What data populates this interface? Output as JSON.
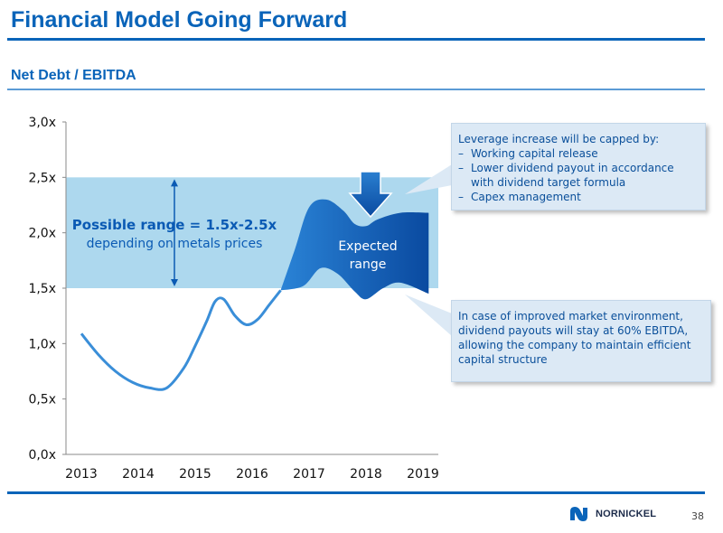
{
  "slide": {
    "title": "Financial Model Going Forward",
    "subtitle": "Net Debt / EBITDA",
    "page_number": "38",
    "logo_text": "NORNICKEL"
  },
  "chart_data": {
    "type": "line",
    "x": [
      "2013",
      "2014",
      "2015",
      "2016",
      "2017",
      "2018",
      "2019"
    ],
    "y_ticks": [
      "0,0x",
      "0,5x",
      "1,0x",
      "1,5x",
      "2,0x",
      "2,5x",
      "3,0x"
    ],
    "ylim": [
      0,
      3
    ],
    "grid": false,
    "series": [
      {
        "points": [
          [
            2013.0,
            1.09
          ],
          [
            2013.3,
            0.9
          ],
          [
            2013.6,
            0.75
          ],
          [
            2013.9,
            0.65
          ],
          [
            2014.2,
            0.6
          ],
          [
            2014.5,
            0.6
          ],
          [
            2014.8,
            0.78
          ],
          [
            2015.0,
            0.98
          ],
          [
            2015.2,
            1.2
          ],
          [
            2015.35,
            1.38
          ],
          [
            2015.5,
            1.4
          ],
          [
            2015.7,
            1.25
          ],
          [
            2015.9,
            1.17
          ],
          [
            2016.1,
            1.22
          ],
          [
            2016.3,
            1.35
          ],
          [
            2016.5,
            1.48
          ]
        ]
      }
    ],
    "possible_range": {
      "low": 1.5,
      "high": 2.5,
      "label": "Possible range = 1.5x-2.5x",
      "sublabel": "depending on metals prices"
    },
    "expected_range": {
      "label_line1": "Expected",
      "label_line2": "range",
      "upper": [
        [
          2016.5,
          1.48
        ],
        [
          2016.75,
          1.85
        ],
        [
          2017.0,
          2.23
        ],
        [
          2017.3,
          2.3
        ],
        [
          2017.6,
          2.2
        ],
        [
          2017.8,
          2.08
        ],
        [
          2018.0,
          2.06
        ],
        [
          2018.2,
          2.12
        ],
        [
          2018.6,
          2.18
        ],
        [
          2019.1,
          2.18
        ]
      ],
      "lower": [
        [
          2019.1,
          1.45
        ],
        [
          2018.6,
          1.55
        ],
        [
          2018.3,
          1.5
        ],
        [
          2018.0,
          1.4
        ],
        [
          2017.8,
          1.47
        ],
        [
          2017.5,
          1.63
        ],
        [
          2017.2,
          1.68
        ],
        [
          2016.9,
          1.52
        ],
        [
          2016.5,
          1.48
        ]
      ]
    },
    "colors": {
      "line": "#3a8ed8",
      "possible_range_fill": "#add8ee",
      "expected_range_fill": "#0a5ab4",
      "axis_text": "#111111",
      "label_blue": "#0a5ab4"
    }
  },
  "callouts": {
    "top": {
      "heading": "Leverage increase will be capped by:",
      "items": [
        "Working capital release",
        "Lower dividend payout in accordance with dividend target formula",
        "Capex management"
      ]
    },
    "bottom": {
      "text": "In case of improved market environment, dividend payouts will stay at 60% EBITDA, allowing the company to maintain efficient capital structure"
    }
  }
}
